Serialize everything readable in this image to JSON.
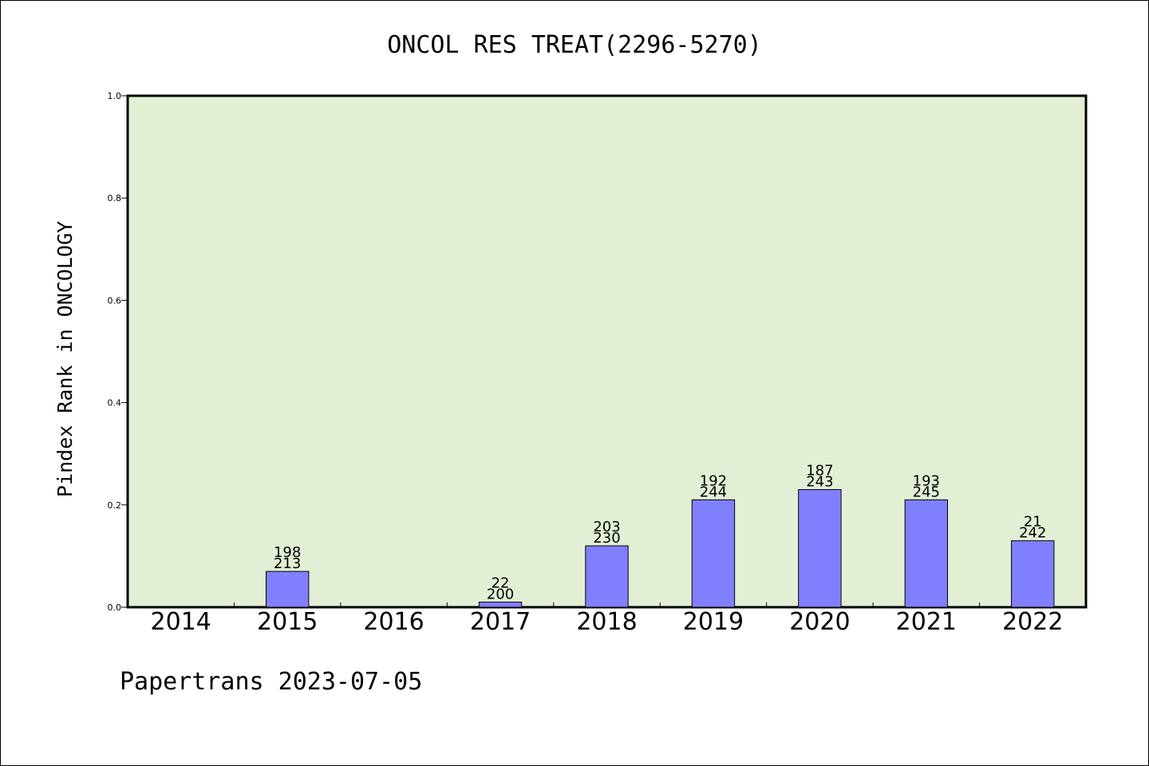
{
  "chart_data": {
    "type": "bar",
    "title": "ONCOL RES TREAT(2296-5270)",
    "xlabel": "",
    "ylabel": "Pindex Rank in ONCOLOGY",
    "ylim": [
      0,
      1.0
    ],
    "yticks": [
      "0.0",
      "0.2",
      "0.4",
      "0.6",
      "0.8",
      "1.0"
    ],
    "categories": [
      "2014",
      "2015",
      "2016",
      "2017",
      "2018",
      "2019",
      "2020",
      "2021",
      "2022"
    ],
    "values": [
      null,
      0.07,
      null,
      0.01,
      0.12,
      0.21,
      0.23,
      0.21,
      0.13
    ],
    "labels_top": [
      "",
      "198",
      "",
      "22",
      "203",
      "192",
      "187",
      "193",
      "21"
    ],
    "labels_bottom": [
      "",
      "213",
      "",
      "200",
      "230",
      "244",
      "243",
      "245",
      "242"
    ],
    "grid": false,
    "colors": {
      "plot_bg": "#e2efd5",
      "bar": "#8080ff",
      "bar_edge": "#000000"
    }
  },
  "footer": "Papertrans 2023-07-05"
}
